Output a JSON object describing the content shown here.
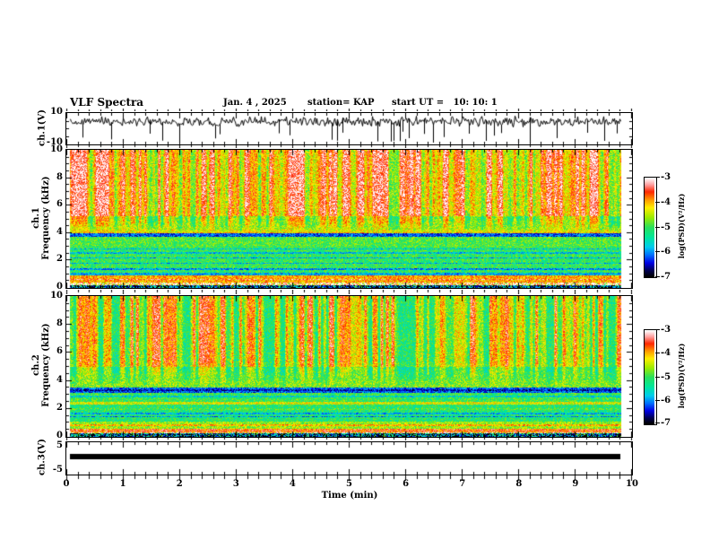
{
  "header": {
    "title": "VLF Spectra",
    "date": "Jan. 4 , 2025",
    "station": "station= KAP",
    "start_ut": "start UT =   10: 10: 1"
  },
  "axes": {
    "time": {
      "label": "Time (min)",
      "range": [
        0,
        10
      ],
      "minor_step": 0.2,
      "ticks": [
        "0",
        "1",
        "2",
        "3",
        "4",
        "5",
        "6",
        "7",
        "8",
        "9",
        "10"
      ]
    },
    "ch1_wave": {
      "label": "ch.1(V)",
      "tick_top": "10",
      "tick_bottom": "-10",
      "range": [
        -10,
        10
      ]
    },
    "spec_freq": {
      "ch1_label": "ch.1",
      "ch2_label": "ch.2",
      "label": "Frequency (kHz)",
      "ticks": [
        "0",
        "2",
        "4",
        "6",
        "8",
        "10"
      ],
      "range": [
        0,
        10
      ]
    },
    "ch3": {
      "label": "ch.3(V)",
      "tick_top": "5",
      "tick_bottom": "-5",
      "range": [
        -6.5,
        6.5
      ]
    }
  },
  "colorbar": {
    "label": "log(PSD)(V²/Hz)",
    "ticks": [
      "-3",
      "-4",
      "-5",
      "-6",
      "-7"
    ],
    "range": [
      -7,
      -3
    ]
  },
  "colormap": {
    "stops": [
      [
        0,
        "#000000"
      ],
      [
        0.06,
        "#00004d"
      ],
      [
        0.14,
        "#0000e6"
      ],
      [
        0.22,
        "#0070ff"
      ],
      [
        0.3,
        "#00ccee"
      ],
      [
        0.4,
        "#00e89a"
      ],
      [
        0.5,
        "#2ae05c"
      ],
      [
        0.6,
        "#9cec00"
      ],
      [
        0.7,
        "#ffee00"
      ],
      [
        0.78,
        "#ff9800"
      ],
      [
        0.86,
        "#ff2600"
      ],
      [
        0.93,
        "#ff9c9c"
      ],
      [
        1,
        "#ffffff"
      ]
    ]
  },
  "chart_data": [
    {
      "id": "ch1_waveform",
      "type": "line",
      "channel": "ch.1",
      "x_range": [
        0,
        10
      ],
      "x_data_end": 9.8,
      "y_range": [
        -10,
        10
      ],
      "description": "dense noisy voltage trace centered near +4 V with frequent downward spikes to -10 V",
      "synth": {
        "seed": 303,
        "baseline": 4.3,
        "wander": 2.4,
        "jitter": 1.6,
        "spike_prob": 0.055,
        "spike_min": -9.5,
        "spike_max": -2
      }
    },
    {
      "id": "ch1_spectrogram",
      "type": "heatmap",
      "channel": "ch.1",
      "x_range": [
        0,
        10
      ],
      "x_data_end": 9.8,
      "y_range": [
        0,
        10
      ],
      "z_range": [
        -7,
        -3
      ],
      "z_units": "log(PSD)(V²/Hz)",
      "description": "strong red band above ~5 kHz with vertical streaks down to ~4 kHz, green 1-3 kHz, dark absorption band 3.7-4.0 kHz, intense red/white bands 0.2-0.9 kHz, dark bottom edge",
      "synth": {
        "seed": 101,
        "bands": [
          [
            5.2,
            10.01,
            -4.0
          ],
          [
            4.2,
            5.2,
            -4.55
          ],
          [
            3.95,
            4.2,
            -4.35
          ],
          [
            3.72,
            3.95,
            -6.2
          ],
          [
            3.0,
            3.72,
            -4.9
          ],
          [
            1.05,
            3.0,
            -5.05
          ],
          [
            0.9,
            1.05,
            -5.85
          ],
          [
            0.35,
            0.9,
            -3.95
          ],
          [
            0.14,
            0.35,
            -3.35
          ],
          [
            0.0,
            0.14,
            -6.4
          ]
        ],
        "lines": [
          [
            1.35,
            -5.95
          ],
          [
            1.75,
            -5.8
          ],
          [
            2.15,
            -5.85
          ],
          [
            2.5,
            -5.75
          ],
          [
            2.8,
            -5.7
          ],
          [
            3.98,
            -4.05
          ],
          [
            0.6,
            -3.5
          ]
        ],
        "streak": {
          "f0": 3.95,
          "f1": 5.0,
          "amp": 1.5,
          "bias": 0.62
        },
        "speckle": 0.5,
        "bottom_speckle_below": 0.35
      }
    },
    {
      "id": "ch2_spectrogram",
      "type": "heatmap",
      "channel": "ch.2",
      "x_range": [
        0,
        10
      ],
      "x_data_end": 9.8,
      "y_range": [
        0,
        10
      ],
      "z_range": [
        -7,
        -3
      ],
      "z_units": "log(PSD)(V²/Hz)",
      "description": "red vertical streaks above ~4.5 kHz on yellow-green background, green/cyan 1-3 kHz, dark band 3.1-3.5 kHz, orange band ~2.3 kHz, red/white bands below 0.6 kHz",
      "synth": {
        "seed": 202,
        "bands": [
          [
            5.0,
            10.01,
            -4.35
          ],
          [
            4.0,
            5.0,
            -4.8
          ],
          [
            3.5,
            4.0,
            -4.7
          ],
          [
            3.12,
            3.5,
            -6.15
          ],
          [
            2.5,
            3.12,
            -5.0
          ],
          [
            2.28,
            2.5,
            -4.35
          ],
          [
            1.05,
            2.28,
            -5.15
          ],
          [
            0.55,
            1.05,
            -4.6
          ],
          [
            0.24,
            0.55,
            -3.65
          ],
          [
            0.0,
            0.24,
            -6.3
          ]
        ],
        "lines": [
          [
            1.4,
            -6.0
          ],
          [
            1.65,
            -5.85
          ],
          [
            1.95,
            -4.95
          ],
          [
            2.85,
            -5.6
          ],
          [
            0.8,
            -4.0
          ],
          [
            3.31,
            -6.5
          ]
        ],
        "streak": {
          "f0": 3.5,
          "f1": 5.4,
          "amp": 1.7,
          "bias": 0.42
        },
        "speckle": 0.5,
        "bottom_speckle_below": 0.3
      }
    },
    {
      "id": "ch3_level",
      "type": "area",
      "channel": "ch.3",
      "x_range": [
        0,
        10
      ],
      "x_data_end": 9.8,
      "y_range": [
        -6.5,
        6.5
      ],
      "description": "flat saturated signal drawn as a thick black bar just above 0 V for the full record",
      "bar_top": 1.8,
      "bar_bottom": -0.4
    }
  ]
}
